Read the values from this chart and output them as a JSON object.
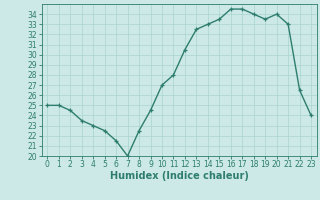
{
  "x": [
    0,
    1,
    2,
    3,
    4,
    5,
    6,
    7,
    8,
    9,
    10,
    11,
    12,
    13,
    14,
    15,
    16,
    17,
    18,
    19,
    20,
    21,
    22,
    23
  ],
  "y": [
    25.0,
    25.0,
    24.5,
    23.5,
    23.0,
    22.5,
    21.5,
    20.0,
    22.5,
    24.5,
    27.0,
    28.0,
    30.5,
    32.5,
    33.0,
    33.5,
    34.5,
    34.5,
    34.0,
    33.5,
    34.0,
    33.0,
    26.5,
    24.0
  ],
  "line_color": "#2e7d6e",
  "marker": "+",
  "bg_color": "#cce9e7",
  "grid_color": "#aad4d0",
  "xlabel": "Humidex (Indice chaleur)",
  "ylim": [
    20,
    35
  ],
  "xlim": [
    -0.5,
    23.5
  ],
  "yticks": [
    20,
    21,
    22,
    23,
    24,
    25,
    26,
    27,
    28,
    29,
    30,
    31,
    32,
    33,
    34
  ],
  "xticks": [
    0,
    1,
    2,
    3,
    4,
    5,
    6,
    7,
    8,
    9,
    10,
    11,
    12,
    13,
    14,
    15,
    16,
    17,
    18,
    19,
    20,
    21,
    22,
    23
  ],
  "tick_fontsize": 5.5,
  "label_fontsize": 7
}
